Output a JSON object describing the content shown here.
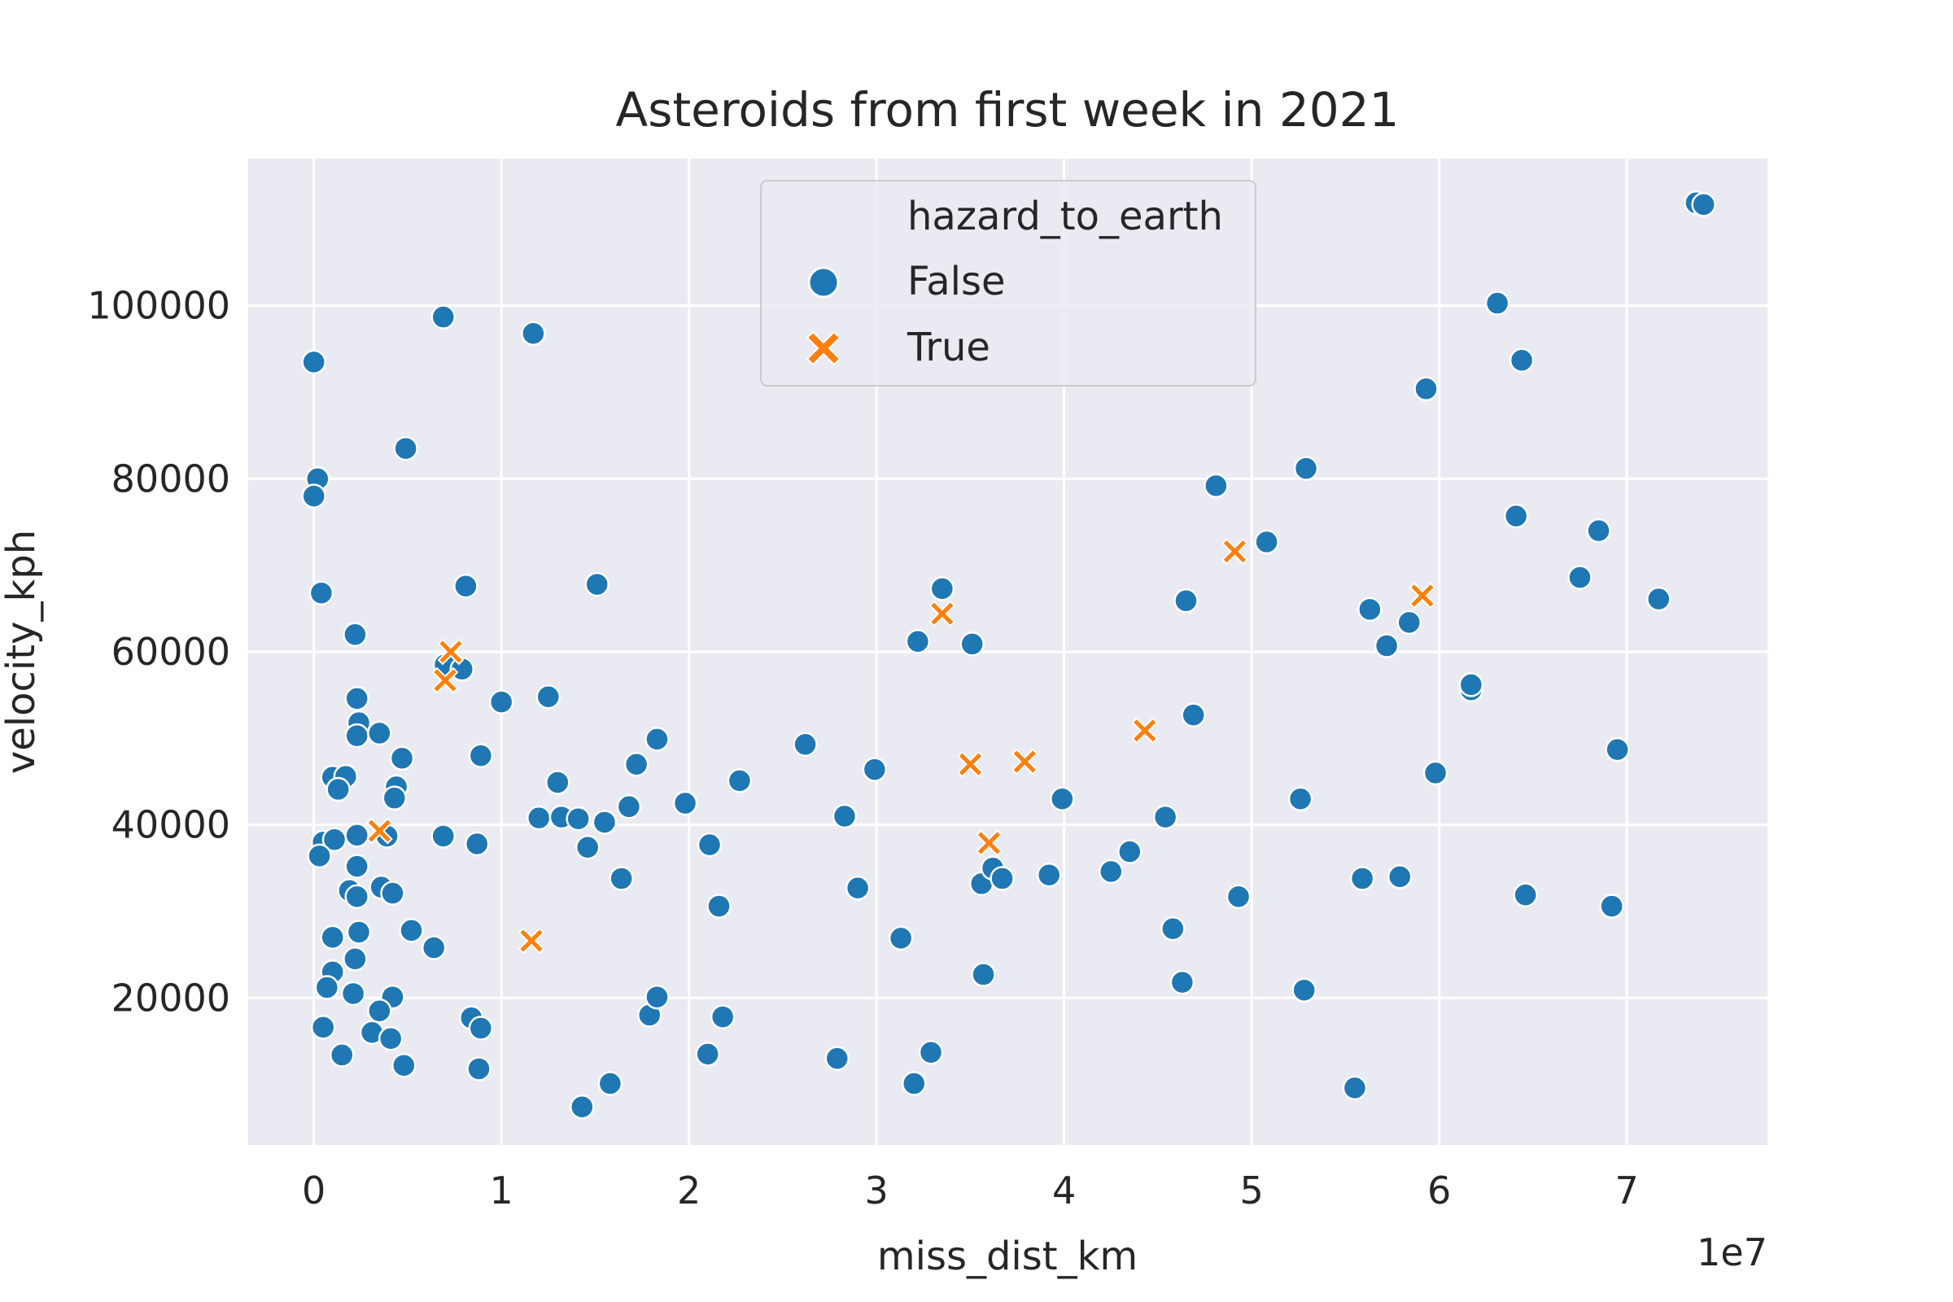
{
  "chart_data": {
    "type": "scatter",
    "title": "Asteroids from first week in 2021",
    "xlabel": "miss_dist_km",
    "ylabel": "velocity_kph",
    "x_offset_label": "1e7",
    "xlim": [
      -0.35,
      7.75
    ],
    "ylim": [
      3000,
      117000
    ],
    "x_ticks": [
      0,
      1,
      2,
      3,
      4,
      5,
      6,
      7
    ],
    "x_tick_labels": [
      "0",
      "1",
      "2",
      "3",
      "4",
      "5",
      "6",
      "7"
    ],
    "y_ticks": [
      20000,
      40000,
      60000,
      80000,
      100000
    ],
    "y_tick_labels": [
      "20000",
      "40000",
      "60000",
      "80000",
      "100000"
    ],
    "grid": true,
    "legend": {
      "title": "hazard_to_earth",
      "position": "top-center",
      "entries": [
        {
          "label": "False",
          "marker": "circle",
          "color": "#1f77b4"
        },
        {
          "label": "True",
          "marker": "x",
          "color": "#ff7f0e"
        }
      ]
    },
    "series": [
      {
        "name": "False",
        "marker": "circle",
        "color": "#1f77b4",
        "points": [
          [
            0.0,
            93500
          ],
          [
            0.02,
            80000
          ],
          [
            0.0,
            78000
          ],
          [
            0.04,
            66800
          ],
          [
            0.22,
            62000
          ],
          [
            0.69,
            98700
          ],
          [
            1.17,
            96800
          ],
          [
            0.49,
            83500
          ],
          [
            0.81,
            67600
          ],
          [
            1.51,
            67800
          ],
          [
            0.7,
            58500
          ],
          [
            0.79,
            58000
          ],
          [
            1.0,
            54200
          ],
          [
            1.25,
            54800
          ],
          [
            0.23,
            54600
          ],
          [
            0.24,
            51800
          ],
          [
            0.23,
            50300
          ],
          [
            0.35,
            50600
          ],
          [
            0.47,
            47700
          ],
          [
            0.89,
            48000
          ],
          [
            0.1,
            45500
          ],
          [
            0.17,
            45600
          ],
          [
            0.13,
            44100
          ],
          [
            0.44,
            44400
          ],
          [
            0.43,
            43100
          ],
          [
            1.3,
            44900
          ],
          [
            1.72,
            47000
          ],
          [
            1.83,
            49900
          ],
          [
            2.27,
            45100
          ],
          [
            2.62,
            49300
          ],
          [
            2.99,
            46400
          ],
          [
            0.05,
            38000
          ],
          [
            0.11,
            38300
          ],
          [
            0.03,
            36400
          ],
          [
            0.23,
            38800
          ],
          [
            0.39,
            38700
          ],
          [
            0.69,
            38700
          ],
          [
            0.87,
            37800
          ],
          [
            1.2,
            40800
          ],
          [
            1.32,
            40900
          ],
          [
            1.41,
            40700
          ],
          [
            1.55,
            40300
          ],
          [
            1.68,
            42100
          ],
          [
            1.98,
            42500
          ],
          [
            2.11,
            37700
          ],
          [
            1.46,
            37400
          ],
          [
            2.83,
            41000
          ],
          [
            0.23,
            35200
          ],
          [
            0.36,
            32800
          ],
          [
            0.19,
            32400
          ],
          [
            0.23,
            31700
          ],
          [
            0.42,
            32100
          ],
          [
            0.52,
            27800
          ],
          [
            0.24,
            27600
          ],
          [
            0.1,
            27000
          ],
          [
            0.64,
            25800
          ],
          [
            0.22,
            24500
          ],
          [
            0.1,
            23000
          ],
          [
            0.07,
            21200
          ],
          [
            0.21,
            20500
          ],
          [
            0.42,
            20100
          ],
          [
            0.35,
            18500
          ],
          [
            0.84,
            17700
          ],
          [
            0.89,
            16500
          ],
          [
            0.31,
            16000
          ],
          [
            0.41,
            15300
          ],
          [
            0.05,
            16600
          ],
          [
            0.15,
            13400
          ],
          [
            0.48,
            12200
          ],
          [
            0.88,
            11800
          ],
          [
            1.43,
            7400
          ],
          [
            1.58,
            10100
          ],
          [
            1.79,
            18000
          ],
          [
            1.83,
            20100
          ],
          [
            2.1,
            13500
          ],
          [
            2.18,
            17800
          ],
          [
            2.16,
            30600
          ],
          [
            1.64,
            33800
          ],
          [
            2.79,
            13000
          ],
          [
            2.9,
            32700
          ],
          [
            3.13,
            26900
          ],
          [
            3.2,
            10100
          ],
          [
            3.29,
            13700
          ],
          [
            3.22,
            61200
          ],
          [
            3.35,
            67300
          ],
          [
            3.51,
            60900
          ],
          [
            3.56,
            33200
          ],
          [
            3.62,
            35000
          ],
          [
            3.67,
            33800
          ],
          [
            3.57,
            22700
          ],
          [
            3.92,
            34200
          ],
          [
            3.99,
            43000
          ],
          [
            4.25,
            34600
          ],
          [
            4.35,
            36900
          ],
          [
            4.54,
            40900
          ],
          [
            4.58,
            28000
          ],
          [
            4.63,
            21800
          ],
          [
            4.65,
            65900
          ],
          [
            4.69,
            52700
          ],
          [
            4.81,
            79200
          ],
          [
            4.93,
            31700
          ],
          [
            5.08,
            72700
          ],
          [
            5.26,
            43000
          ],
          [
            5.28,
            20900
          ],
          [
            5.29,
            81200
          ],
          [
            5.55,
            9600
          ],
          [
            5.59,
            33800
          ],
          [
            5.63,
            64900
          ],
          [
            5.72,
            60700
          ],
          [
            5.79,
            34000
          ],
          [
            5.84,
            63400
          ],
          [
            5.93,
            90400
          ],
          [
            5.98,
            46000
          ],
          [
            6.17,
            55600
          ],
          [
            6.17,
            56200
          ],
          [
            6.31,
            100300
          ],
          [
            6.41,
            75700
          ],
          [
            6.44,
            93700
          ],
          [
            6.46,
            31900
          ],
          [
            6.75,
            68600
          ],
          [
            6.85,
            74000
          ],
          [
            6.92,
            30600
          ],
          [
            6.95,
            48700
          ],
          [
            7.17,
            66100
          ],
          [
            7.37,
            111900
          ],
          [
            7.41,
            111700
          ]
        ]
      },
      {
        "name": "True",
        "marker": "x",
        "color": "#ff7f0e",
        "points": [
          [
            0.73,
            60000
          ],
          [
            0.7,
            56700
          ],
          [
            0.35,
            39300
          ],
          [
            1.16,
            26600
          ],
          [
            3.35,
            64400
          ],
          [
            3.5,
            47000
          ],
          [
            3.6,
            37900
          ],
          [
            3.79,
            47300
          ],
          [
            4.43,
            50900
          ],
          [
            4.91,
            71600
          ],
          [
            5.91,
            66500
          ]
        ]
      }
    ]
  }
}
